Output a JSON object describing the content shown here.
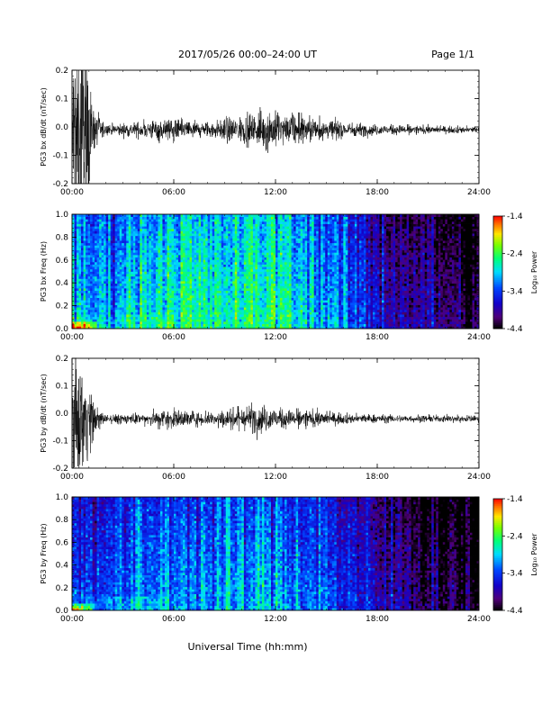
{
  "header": {
    "title": "2017/05/26  00:00–24:00 UT",
    "page_label": "Page 1/1"
  },
  "footer": {
    "xlabel": "Universal Time (hh:mm)"
  },
  "colorbar": {
    "label": "Log₁₀ Power",
    "ticks": [
      "-1.4",
      "-2.4",
      "-3.4",
      "-4.4"
    ]
  },
  "chart_data": [
    {
      "type": "line",
      "ylabel": "PG3 bx dB/dt (nT/sec)",
      "xlim": [
        "00:00",
        "24:00"
      ],
      "ylim": [
        -0.2,
        0.2
      ],
      "yticks": [
        "0.2",
        "0.1",
        "0.0",
        "-0.1",
        "-0.2"
      ],
      "xticks": [
        "00:00",
        "06:00",
        "12:00",
        "18:00",
        "24:00"
      ],
      "baseline": -0.01,
      "envelope": {
        "hours": [
          0,
          0.5,
          1,
          1.2,
          2,
          4,
          5,
          6,
          8,
          9,
          10,
          11,
          11.5,
          12,
          12.5,
          14,
          16,
          18,
          20,
          22,
          24
        ],
        "amplitude": [
          0.2,
          0.2,
          0.15,
          0.05,
          0.012,
          0.018,
          0.025,
          0.025,
          0.018,
          0.025,
          0.03,
          0.04,
          0.05,
          0.04,
          0.035,
          0.03,
          0.018,
          0.012,
          0.01,
          0.008,
          0.008
        ]
      }
    },
    {
      "type": "heatmap",
      "ylabel": "PG3 bx Freq (Hz)",
      "xlim": [
        "00:00",
        "24:00"
      ],
      "ylim": [
        0,
        1.0
      ],
      "yticks": [
        "1.0",
        "0.8",
        "0.6",
        "0.4",
        "0.2",
        "0.0"
      ],
      "xticks": [
        "00:00",
        "06:00",
        "12:00",
        "18:00",
        "24:00"
      ],
      "colorbar_range": [
        -4.4,
        -1.4
      ],
      "power_profile": {
        "hours": [
          0,
          2,
          4,
          6,
          8,
          10,
          12,
          14,
          16,
          18,
          20,
          22,
          24
        ],
        "log_power": [
          -3.0,
          -3.0,
          -2.7,
          -2.5,
          -2.7,
          -2.6,
          -2.5,
          -2.8,
          -3.2,
          -3.6,
          -3.8,
          -4.0,
          -4.3
        ]
      }
    },
    {
      "type": "line",
      "ylabel": "PG3 by dB/dt (nT/sec)",
      "xlim": [
        "00:00",
        "24:00"
      ],
      "ylim": [
        -0.2,
        0.2
      ],
      "yticks": [
        "0.2",
        "0.1",
        "0.0",
        "-0.1",
        "-0.2"
      ],
      "xticks": [
        "00:00",
        "06:00",
        "12:00",
        "18:00",
        "24:00"
      ],
      "baseline": -0.02,
      "envelope": {
        "hours": [
          0,
          0.5,
          1,
          1.3,
          2,
          4,
          5,
          6,
          8,
          9,
          10,
          11,
          11.5,
          12,
          13,
          14,
          16,
          18,
          20,
          22,
          24
        ],
        "amplitude": [
          0.15,
          0.13,
          0.09,
          0.03,
          0.01,
          0.012,
          0.02,
          0.022,
          0.015,
          0.02,
          0.025,
          0.035,
          0.03,
          0.025,
          0.02,
          0.02,
          0.012,
          0.01,
          0.008,
          0.008,
          0.008
        ]
      }
    },
    {
      "type": "heatmap",
      "ylabel": "PG3 by Freq (Hz)",
      "xlim": [
        "00:00",
        "24:00"
      ],
      "ylim": [
        0,
        1.0
      ],
      "yticks": [
        "1.0",
        "0.8",
        "0.6",
        "0.4",
        "0.2",
        "0.0"
      ],
      "xticks": [
        "00:00",
        "06:00",
        "12:00",
        "18:00",
        "24:00"
      ],
      "colorbar_range": [
        -4.4,
        -1.4
      ],
      "power_profile": {
        "hours": [
          0,
          2,
          4,
          6,
          8,
          10,
          12,
          14,
          16,
          18,
          20,
          22,
          24
        ],
        "log_power": [
          -3.3,
          -3.3,
          -3.2,
          -3.0,
          -3.1,
          -3.0,
          -3.0,
          -3.1,
          -3.4,
          -3.8,
          -3.9,
          -4.1,
          -4.3
        ]
      }
    }
  ]
}
